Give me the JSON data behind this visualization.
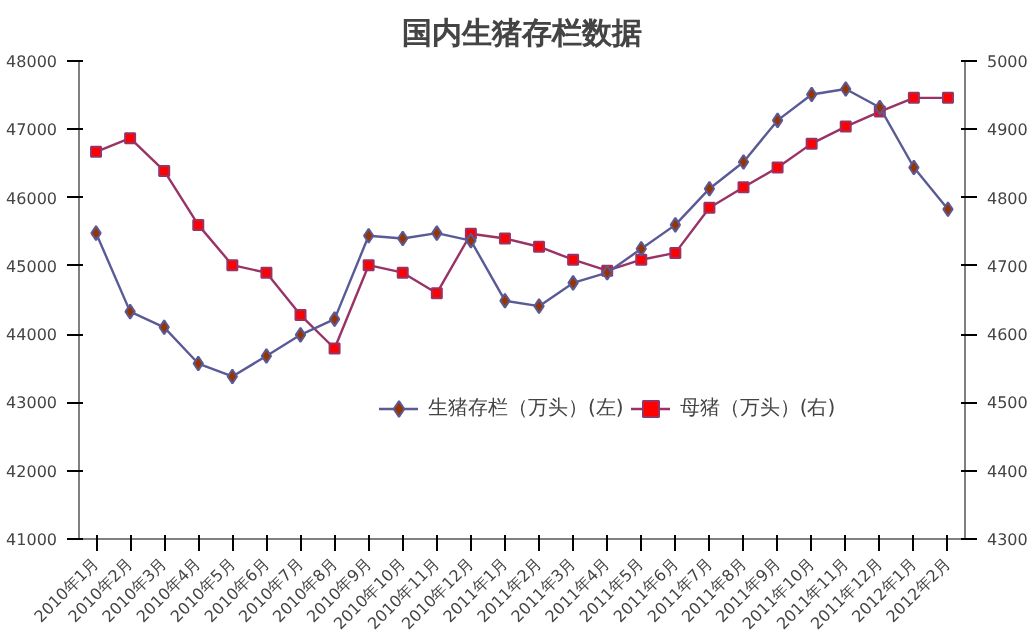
{
  "chart_data": {
    "type": "line",
    "title": "国内生猪存栏数据",
    "categories": [
      "2010年1月",
      "2010年2月",
      "2010年3月",
      "2010年4月",
      "2010年5月",
      "2010年6月",
      "2010年7月",
      "2010年8月",
      "2010年9月",
      "2010年10月",
      "2010年11月",
      "2010年12月",
      "2011年1月",
      "2011年2月",
      "2011年3月",
      "2011年4月",
      "2011年5月",
      "2011年6月",
      "2011年7月",
      "2011年8月",
      "2011年9月",
      "2011年10月",
      "2011年11月",
      "2011年12月",
      "2012年1月",
      "2012年2月"
    ],
    "series": [
      {
        "name": "生猪存栏（万头）(左)",
        "color": "#5a5a96",
        "marker": "diamond",
        "values": [
          45480,
          44330,
          44100,
          43570,
          43380,
          43680,
          43990,
          44220,
          45440,
          45400,
          45480,
          45370,
          44490,
          44410,
          44750,
          44900,
          45250,
          45600,
          46130,
          46520,
          47130,
          47510,
          47590,
          47320,
          46440,
          45830
        ]
      },
      {
        "name": "母猪（万头）(右)",
        "color": "#993366",
        "marker": "square",
        "axis": "y2",
        "values": [
          4867,
          4887,
          4839,
          4760,
          4701,
          4690,
          4628,
          4579,
          4701,
          4690,
          4660,
          4747,
          4740,
          4728,
          4709,
          4693,
          4709,
          4719,
          4785,
          4815,
          4844,
          4879,
          4904,
          4926,
          4946,
          4946
        ]
      }
    ],
    "ylim": [
      41000,
      48000
    ],
    "yticks": [
      41000,
      42000,
      43000,
      44000,
      45000,
      46000,
      47000,
      48000
    ],
    "y2lim": [
      4300,
      5000
    ],
    "y2ticks": [
      4300,
      4400,
      4500,
      4600,
      4700,
      4800,
      4900,
      5000
    ],
    "grid": false,
    "legend": "bottom",
    "line_style": "solid"
  }
}
